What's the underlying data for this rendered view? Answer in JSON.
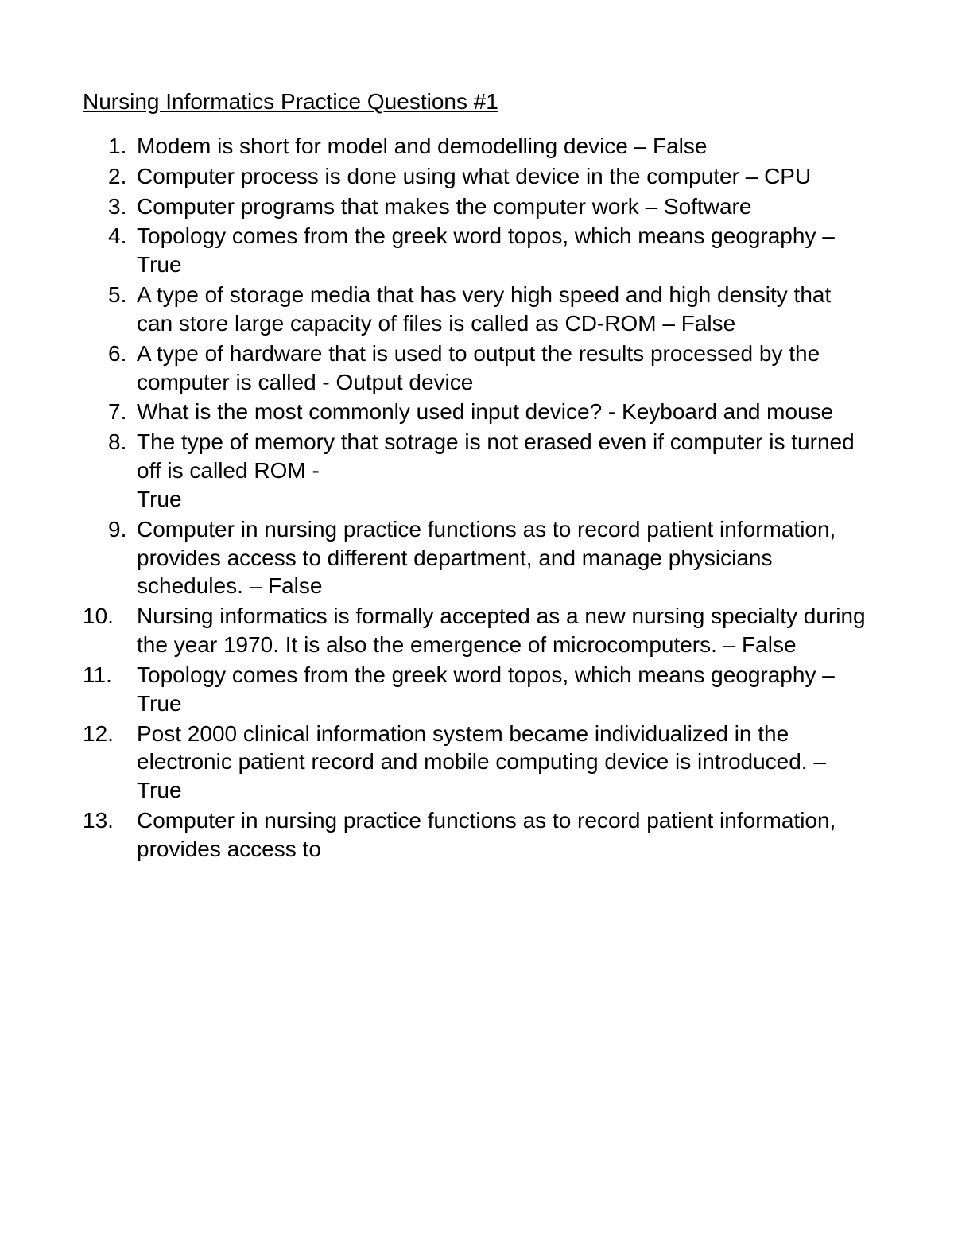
{
  "title": "Nursing Informatics Practice Questions #1",
  "questions": [
    {
      "text": "Modem is short for model and demodelling device – False"
    },
    {
      "text": "Computer process is done using what device in the computer – CPU"
    },
    {
      "text": "Computer programs that makes the computer work – Software"
    },
    {
      "text": "Topology comes from the greek word topos, which means geography – True"
    },
    {
      "text": "A type of storage media that has very high speed and high density that can store large capacity of files is called as CD-ROM – False"
    },
    {
      "text": "A type of hardware that is used to output the results processed by the computer is called - Output device"
    },
    {
      "text": "What is the most commonly used input device? - Keyboard and mouse"
    },
    {
      "text": "The type of memory that sotrage is not erased even if computer is turned off is called ROM -",
      "continued": "True"
    },
    {
      "text": "Computer in nursing practice functions as to record patient information, provides access to different department, and manage physicians schedules.  – False"
    },
    {
      "text": "Nursing informatics is formally  accepted as a new nursing specialty during the year 1970. It is also the emergence of microcomputers.  – False"
    },
    {
      "text": "Topology comes from the greek word topos, which means geography – True"
    },
    {
      "text": "Post 2000 clinical information system became individualized in the electronic patient record and mobile computing device is introduced.  – True"
    },
    {
      "text": "Computer in nursing practice functions as to record patient information, provides access to"
    }
  ]
}
